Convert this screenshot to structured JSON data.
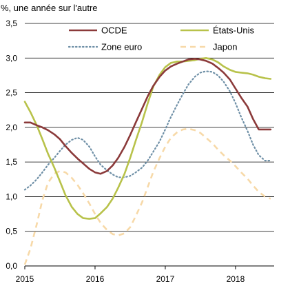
{
  "chart_data": {
    "type": "line",
    "title": "",
    "ylabel": "%, une année sur l'autre",
    "xlabel": "",
    "ylim": [
      0,
      3.5
    ],
    "yticks": [
      "0,0",
      "0,5",
      "1,0",
      "1,5",
      "2,0",
      "2,5",
      "3,0",
      "3,5"
    ],
    "ytick_values": [
      0,
      0.5,
      1.0,
      1.5,
      2.0,
      2.5,
      3.0,
      3.5
    ],
    "xlim": [
      2015.0,
      2018.55
    ],
    "xticks": [
      "2015",
      "2016",
      "2017",
      "2018"
    ],
    "xtick_values": [
      2015,
      2016,
      2017,
      2018
    ],
    "grid": "horizontal",
    "legend_position": "top, two columns",
    "series": [
      {
        "name": "OCDE",
        "color": "#8b3a3a",
        "style": "solid",
        "x": [
          2015.0,
          2015.08,
          2015.17,
          2015.25,
          2015.33,
          2015.42,
          2015.5,
          2015.58,
          2015.67,
          2015.75,
          2015.83,
          2015.92,
          2016.0,
          2016.08,
          2016.17,
          2016.25,
          2016.33,
          2016.42,
          2016.5,
          2016.58,
          2016.67,
          2016.75,
          2016.83,
          2016.92,
          2017.0,
          2017.08,
          2017.17,
          2017.25,
          2017.33,
          2017.42,
          2017.5,
          2017.58,
          2017.67,
          2017.75,
          2017.83,
          2017.92,
          2018.0,
          2018.08,
          2018.17,
          2018.25,
          2018.33,
          2018.42,
          2018.5
        ],
        "values": [
          2.07,
          2.07,
          2.03,
          2.0,
          1.96,
          1.9,
          1.83,
          1.73,
          1.63,
          1.55,
          1.48,
          1.4,
          1.35,
          1.33,
          1.37,
          1.45,
          1.56,
          1.72,
          1.89,
          2.07,
          2.27,
          2.45,
          2.6,
          2.73,
          2.82,
          2.88,
          2.92,
          2.95,
          2.98,
          2.99,
          2.98,
          2.96,
          2.92,
          2.86,
          2.79,
          2.69,
          2.56,
          2.43,
          2.3,
          2.12,
          1.97,
          1.97,
          1.97
        ]
      },
      {
        "name": "États-Unis",
        "color": "#b8c24a",
        "style": "solid",
        "x": [
          2015.0,
          2015.08,
          2015.17,
          2015.25,
          2015.33,
          2015.42,
          2015.5,
          2015.58,
          2015.67,
          2015.75,
          2015.83,
          2015.92,
          2016.0,
          2016.08,
          2016.17,
          2016.25,
          2016.33,
          2016.42,
          2016.5,
          2016.58,
          2016.67,
          2016.75,
          2016.83,
          2016.92,
          2017.0,
          2017.08,
          2017.17,
          2017.25,
          2017.33,
          2017.42,
          2017.5,
          2017.58,
          2017.67,
          2017.75,
          2017.83,
          2017.92,
          2018.0,
          2018.08,
          2018.17,
          2018.25,
          2018.33,
          2018.42,
          2018.5
        ],
        "values": [
          2.37,
          2.22,
          2.03,
          1.83,
          1.62,
          1.42,
          1.22,
          1.02,
          0.85,
          0.75,
          0.69,
          0.68,
          0.69,
          0.76,
          0.85,
          0.97,
          1.13,
          1.33,
          1.56,
          1.81,
          2.08,
          2.35,
          2.59,
          2.76,
          2.87,
          2.93,
          2.95,
          2.95,
          2.96,
          2.97,
          2.99,
          3.0,
          2.98,
          2.94,
          2.88,
          2.83,
          2.8,
          2.79,
          2.78,
          2.76,
          2.73,
          2.71,
          2.7
        ]
      },
      {
        "name": "Zone euro",
        "color": "#6e8fa6",
        "style": "dotted",
        "x": [
          2015.0,
          2015.08,
          2015.17,
          2015.25,
          2015.33,
          2015.42,
          2015.5,
          2015.58,
          2015.67,
          2015.75,
          2015.83,
          2015.92,
          2016.0,
          2016.08,
          2016.17,
          2016.25,
          2016.33,
          2016.42,
          2016.5,
          2016.58,
          2016.67,
          2016.75,
          2016.83,
          2016.92,
          2017.0,
          2017.08,
          2017.17,
          2017.25,
          2017.33,
          2017.42,
          2017.5,
          2017.58,
          2017.67,
          2017.75,
          2017.83,
          2017.92,
          2018.0,
          2018.08,
          2018.17,
          2018.25,
          2018.33,
          2018.42,
          2018.5
        ],
        "values": [
          1.1,
          1.16,
          1.25,
          1.35,
          1.46,
          1.56,
          1.66,
          1.75,
          1.82,
          1.85,
          1.82,
          1.72,
          1.58,
          1.46,
          1.38,
          1.32,
          1.28,
          1.28,
          1.3,
          1.35,
          1.42,
          1.52,
          1.65,
          1.8,
          1.97,
          2.15,
          2.33,
          2.48,
          2.62,
          2.73,
          2.79,
          2.81,
          2.8,
          2.75,
          2.66,
          2.52,
          2.35,
          2.15,
          1.95,
          1.75,
          1.6,
          1.52,
          1.52
        ]
      },
      {
        "name": "Japon",
        "color": "#f7d9a8",
        "style": "dashed",
        "x": [
          2015.0,
          2015.08,
          2015.17,
          2015.25,
          2015.33,
          2015.42,
          2015.5,
          2015.58,
          2015.67,
          2015.75,
          2015.83,
          2015.92,
          2016.0,
          2016.08,
          2016.17,
          2016.25,
          2016.33,
          2016.42,
          2016.5,
          2016.58,
          2016.67,
          2016.75,
          2016.83,
          2016.92,
          2017.0,
          2017.08,
          2017.17,
          2017.25,
          2017.33,
          2017.42,
          2017.5,
          2017.58,
          2017.67,
          2017.75,
          2017.83,
          2017.92,
          2018.0,
          2018.08,
          2018.17,
          2018.25,
          2018.33,
          2018.42,
          2018.5
        ],
        "values": [
          0.02,
          0.25,
          0.6,
          0.95,
          1.2,
          1.33,
          1.37,
          1.35,
          1.27,
          1.17,
          1.05,
          0.9,
          0.75,
          0.62,
          0.52,
          0.46,
          0.44,
          0.47,
          0.56,
          0.72,
          0.92,
          1.14,
          1.36,
          1.56,
          1.72,
          1.85,
          1.93,
          1.97,
          1.98,
          1.96,
          1.92,
          1.85,
          1.77,
          1.68,
          1.6,
          1.52,
          1.44,
          1.35,
          1.26,
          1.16,
          1.07,
          1.0,
          0.97
        ]
      }
    ]
  }
}
